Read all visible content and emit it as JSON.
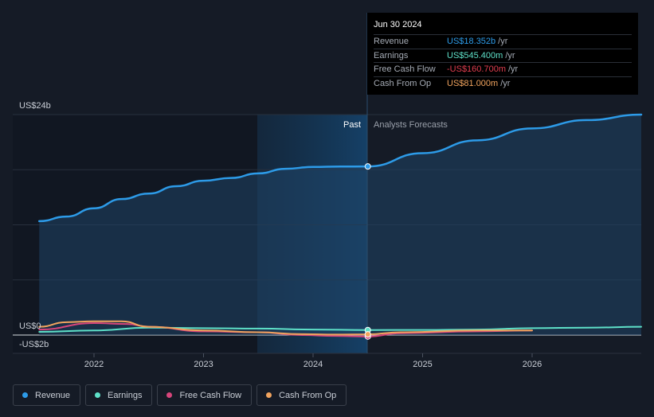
{
  "chart_data": {
    "type": "line",
    "y_top_label": "US$24b",
    "y_zero_label": "US$0",
    "y_neg_label": "-US$2b",
    "x_ticks": [
      "2022",
      "2023",
      "2024",
      "2025",
      "2026"
    ],
    "past_label": "Past",
    "forecast_label": "Analysts Forecasts",
    "ylim": [
      -2,
      24
    ],
    "series": [
      {
        "name": "Revenue",
        "color": "#2d9be8",
        "x": [
          2021.5,
          2021.75,
          2022.0,
          2022.25,
          2022.5,
          2022.75,
          2023.0,
          2023.25,
          2023.5,
          2023.75,
          2024.0,
          2024.25,
          2024.5
        ],
        "y": [
          12.4,
          12.9,
          13.8,
          14.8,
          15.4,
          16.2,
          16.8,
          17.1,
          17.6,
          18.1,
          18.3,
          18.35,
          18.352
        ]
      },
      {
        "name": "Revenue forecast",
        "color": "#2d9be8",
        "x": [
          2024.5,
          2025.0,
          2025.5,
          2026.0,
          2026.5,
          2027.0
        ],
        "y": [
          18.352,
          19.8,
          21.2,
          22.5,
          23.4,
          24.0
        ]
      },
      {
        "name": "Earnings",
        "color": "#5ee0c8",
        "x": [
          2021.5,
          2022.0,
          2022.5,
          2023.0,
          2023.5,
          2024.0,
          2024.5,
          2025.0,
          2025.5,
          2026.0,
          2026.5,
          2027.0
        ],
        "y": [
          0.35,
          0.5,
          0.8,
          0.75,
          0.7,
          0.6,
          0.545,
          0.55,
          0.6,
          0.75,
          0.8,
          0.9
        ]
      },
      {
        "name": "Free Cash Flow",
        "color": "#d6457b",
        "x": [
          2021.5,
          2022.0,
          2022.3,
          2022.5,
          2023.0,
          2023.5,
          2023.9,
          2024.2,
          2024.5,
          2024.8,
          2025.5,
          2026.0
        ],
        "y": [
          0.6,
          1.3,
          1.2,
          0.9,
          0.4,
          0.3,
          0.0,
          -0.1,
          -0.16,
          0.2,
          0.4,
          0.5
        ]
      },
      {
        "name": "Cash From Op",
        "color": "#f0a35e",
        "x": [
          2021.5,
          2021.75,
          2022.0,
          2022.25,
          2022.5,
          2023.0,
          2023.5,
          2023.9,
          2024.2,
          2024.5,
          2024.8,
          2025.5,
          2026.0
        ],
        "y": [
          0.9,
          1.4,
          1.5,
          1.5,
          0.9,
          0.5,
          0.3,
          0.1,
          0.05,
          0.081,
          0.3,
          0.5,
          0.5
        ]
      }
    ],
    "highlight_x": 2024.5
  },
  "tooltip": {
    "date": "Jun 30 2024",
    "rows": [
      {
        "label": "Revenue",
        "value": "US$18.352b",
        "unit": "/yr",
        "color": "#2d9be8"
      },
      {
        "label": "Earnings",
        "value": "US$545.400m",
        "unit": "/yr",
        "color": "#5ee0c8"
      },
      {
        "label": "Free Cash Flow",
        "value": "-US$160.700m",
        "unit": "/yr",
        "color": "#e23d4f"
      },
      {
        "label": "Cash From Op",
        "value": "US$81.000m",
        "unit": "/yr",
        "color": "#f0a35e"
      }
    ]
  },
  "legend": [
    {
      "label": "Revenue",
      "color": "#2d9be8"
    },
    {
      "label": "Earnings",
      "color": "#5ee0c8"
    },
    {
      "label": "Free Cash Flow",
      "color": "#d6457b"
    },
    {
      "label": "Cash From Op",
      "color": "#f0a35e"
    }
  ]
}
